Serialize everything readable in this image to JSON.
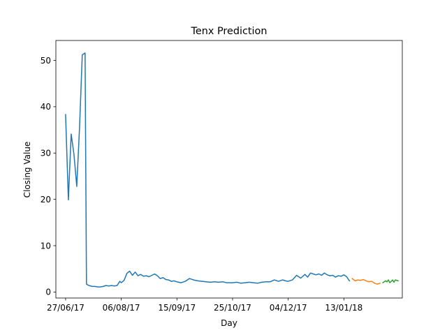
{
  "chart_data": {
    "type": "line",
    "title": "Tenx Prediction",
    "xlabel": "Day",
    "ylabel": "Closing Value",
    "x_tick_labels": [
      "27/06/17",
      "06/08/17",
      "15/09/17",
      "25/10/17",
      "04/12/17",
      "13/01/18"
    ],
    "x_tick_dates": [
      "2017-06-27",
      "2017-08-06",
      "2017-09-15",
      "2017-10-25",
      "2017-12-04",
      "2018-01-13"
    ],
    "y_ticks": [
      0,
      10,
      20,
      30,
      40,
      50
    ],
    "xlim": [
      "2017-06-20",
      "2018-02-24"
    ],
    "ylim": [
      -1.3,
      54.3
    ],
    "grid": false,
    "series": [
      {
        "color": "#1f77b4",
        "x": [
          "2017-06-27",
          "2017-06-29",
          "2017-07-01",
          "2017-07-03",
          "2017-07-05",
          "2017-07-07",
          "2017-07-09",
          "2017-07-11",
          "2017-07-12",
          "2017-07-13",
          "2017-07-14",
          "2017-07-16",
          "2017-07-18",
          "2017-07-20",
          "2017-07-22",
          "2017-07-24",
          "2017-07-26",
          "2017-07-28",
          "2017-07-30",
          "2017-08-01",
          "2017-08-03",
          "2017-08-05",
          "2017-08-06",
          "2017-08-08",
          "2017-08-10",
          "2017-08-12",
          "2017-08-14",
          "2017-08-16",
          "2017-08-18",
          "2017-08-20",
          "2017-08-22",
          "2017-08-24",
          "2017-08-26",
          "2017-08-28",
          "2017-08-30",
          "2017-09-01",
          "2017-09-03",
          "2017-09-05",
          "2017-09-07",
          "2017-09-09",
          "2017-09-11",
          "2017-09-13",
          "2017-09-15",
          "2017-09-18",
          "2017-09-21",
          "2017-09-24",
          "2017-09-27",
          "2017-09-30",
          "2017-10-03",
          "2017-10-06",
          "2017-10-09",
          "2017-10-12",
          "2017-10-15",
          "2017-10-18",
          "2017-10-21",
          "2017-10-25",
          "2017-10-28",
          "2017-10-31",
          "2017-11-03",
          "2017-11-06",
          "2017-11-09",
          "2017-11-12",
          "2017-11-15",
          "2017-11-18",
          "2017-11-21",
          "2017-11-24",
          "2017-11-27",
          "2017-11-30",
          "2017-12-02",
          "2017-12-04",
          "2017-12-07",
          "2017-12-10",
          "2017-12-13",
          "2017-12-16",
          "2017-12-18",
          "2017-12-20",
          "2017-12-22",
          "2017-12-24",
          "2017-12-26",
          "2017-12-28",
          "2017-12-30",
          "2018-01-01",
          "2018-01-03",
          "2018-01-05",
          "2018-01-07",
          "2018-01-09",
          "2018-01-11",
          "2018-01-13",
          "2018-01-15",
          "2018-01-17"
        ],
        "values": [
          38.3,
          19.9,
          34.1,
          29.7,
          22.8,
          35.6,
          51.2,
          51.6,
          1.7,
          1.5,
          1.4,
          1.2,
          1.2,
          1.1,
          1.1,
          1.2,
          1.4,
          1.3,
          1.4,
          1.3,
          1.4,
          2.3,
          2.0,
          2.5,
          4.0,
          4.5,
          3.6,
          4.3,
          3.5,
          3.8,
          3.4,
          3.5,
          3.3,
          3.6,
          3.9,
          3.5,
          2.9,
          3.1,
          2.7,
          2.6,
          2.3,
          2.4,
          2.2,
          2.0,
          2.3,
          2.9,
          2.6,
          2.4,
          2.3,
          2.2,
          2.1,
          2.2,
          2.1,
          2.2,
          2.0,
          2.0,
          2.1,
          1.9,
          2.0,
          2.1,
          2.0,
          1.9,
          2.1,
          2.2,
          2.2,
          2.6,
          2.3,
          2.6,
          2.4,
          2.3,
          2.6,
          3.6,
          3.0,
          3.8,
          3.2,
          4.1,
          3.9,
          3.7,
          3.9,
          3.6,
          4.1,
          3.7,
          3.5,
          3.6,
          3.2,
          3.5,
          3.4,
          3.7,
          3.3,
          2.4
        ]
      },
      {
        "color": "#ff7f0e",
        "x": [
          "2018-01-19",
          "2018-01-21",
          "2018-01-23",
          "2018-01-25",
          "2018-01-27",
          "2018-01-29",
          "2018-01-31",
          "2018-02-02",
          "2018-02-04",
          "2018-02-06",
          "2018-02-08"
        ],
        "values": [
          2.9,
          2.4,
          2.6,
          2.5,
          2.7,
          2.4,
          2.2,
          2.3,
          1.9,
          1.7,
          1.9
        ]
      },
      {
        "color": "#2ca02c",
        "x": [
          "2018-02-10",
          "2018-02-12",
          "2018-02-13",
          "2018-02-14",
          "2018-02-15",
          "2018-02-17",
          "2018-02-18",
          "2018-02-19",
          "2018-02-21"
        ],
        "values": [
          2.0,
          2.4,
          2.2,
          2.6,
          2.0,
          2.6,
          2.1,
          2.6,
          2.4
        ]
      }
    ]
  }
}
